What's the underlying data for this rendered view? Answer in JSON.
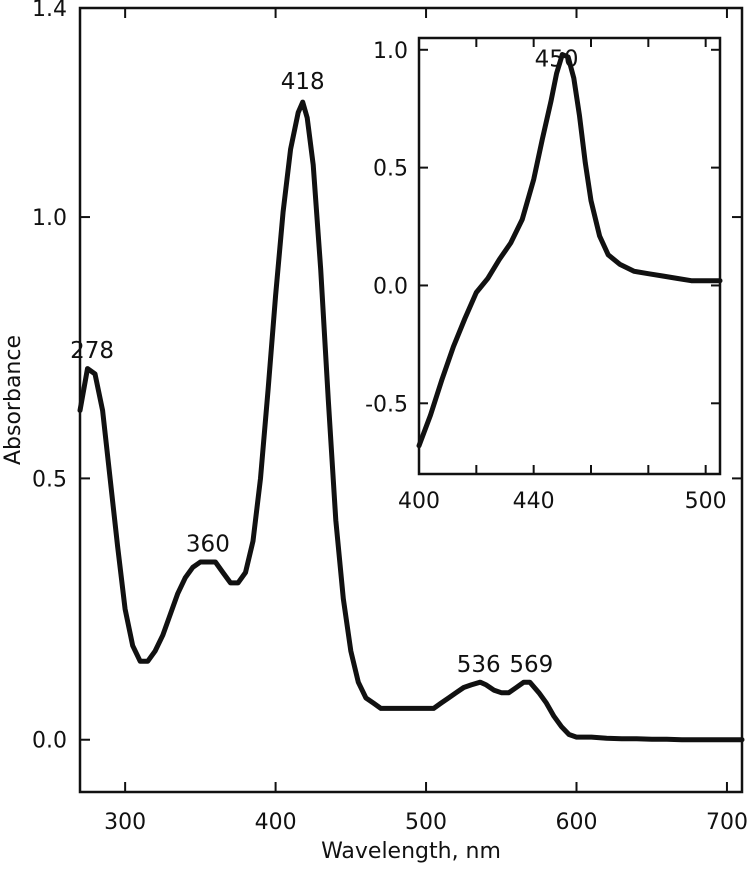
{
  "chart_data": [
    {
      "type": "line",
      "title": "",
      "xlabel": "Wavelength, nm",
      "ylabel": "Absorbance",
      "xlim": [
        270,
        710
      ],
      "ylim": [
        -0.1,
        1.4
      ],
      "xticks": [
        300,
        400,
        500,
        600,
        700
      ],
      "yticks": [
        0.0,
        0.5,
        1.0,
        1.4
      ],
      "ytick_labels": [
        "0.0",
        "0.5",
        "1.0",
        "1.4"
      ],
      "grid": false,
      "series": [
        {
          "color": "#111111",
          "x": [
            270,
            275,
            280,
            285,
            290,
            295,
            300,
            305,
            310,
            315,
            320,
            325,
            330,
            335,
            340,
            345,
            350,
            355,
            360,
            365,
            370,
            375,
            380,
            385,
            390,
            395,
            400,
            405,
            410,
            415,
            418,
            421,
            425,
            430,
            435,
            440,
            445,
            450,
            455,
            460,
            465,
            470,
            475,
            480,
            485,
            490,
            495,
            500,
            505,
            510,
            515,
            520,
            525,
            530,
            536,
            540,
            545,
            550,
            555,
            560,
            565,
            569,
            575,
            580,
            585,
            590,
            595,
            600,
            610,
            620,
            630,
            640,
            650,
            660,
            670,
            680,
            690,
            700,
            710
          ],
          "y": [
            0.63,
            0.71,
            0.7,
            0.63,
            0.5,
            0.37,
            0.25,
            0.18,
            0.15,
            0.15,
            0.17,
            0.2,
            0.24,
            0.28,
            0.31,
            0.33,
            0.34,
            0.34,
            0.34,
            0.32,
            0.3,
            0.3,
            0.32,
            0.38,
            0.5,
            0.67,
            0.85,
            1.01,
            1.13,
            1.2,
            1.22,
            1.19,
            1.1,
            0.9,
            0.65,
            0.42,
            0.27,
            0.17,
            0.11,
            0.08,
            0.07,
            0.06,
            0.06,
            0.06,
            0.06,
            0.06,
            0.06,
            0.06,
            0.06,
            0.07,
            0.08,
            0.09,
            0.1,
            0.105,
            0.11,
            0.105,
            0.095,
            0.09,
            0.09,
            0.1,
            0.11,
            0.11,
            0.09,
            0.07,
            0.045,
            0.025,
            0.01,
            0.005,
            0.005,
            0.003,
            0.002,
            0.002,
            0.001,
            0.001,
            0.0,
            0.0,
            0.0,
            0.0,
            0.0
          ]
        }
      ],
      "annotations": [
        {
          "text": "278",
          "x": 278,
          "y": 0.73
        },
        {
          "text": "360",
          "x": 355,
          "y": 0.36
        },
        {
          "text": "418",
          "x": 418,
          "y": 1.245
        },
        {
          "text": "536",
          "x": 535,
          "y": 0.13
        },
        {
          "text": "569",
          "x": 570,
          "y": 0.13
        }
      ]
    },
    {
      "type": "line",
      "title": "",
      "xlabel": "",
      "ylabel": "",
      "xlim": [
        400,
        505
      ],
      "ylim": [
        -0.8,
        1.05
      ],
      "xticks": [
        400,
        420,
        440,
        460,
        480,
        500
      ],
      "xtick_labels_shown": [
        400,
        440,
        500
      ],
      "yticks": [
        -0.5,
        0.0,
        0.5,
        1.0
      ],
      "ytick_labels": [
        "-0.5",
        "0.0",
        "0.5",
        "1.0"
      ],
      "grid": false,
      "series": [
        {
          "color": "#111111",
          "x": [
            400,
            404,
            408,
            412,
            416,
            420,
            424,
            428,
            432,
            436,
            440,
            443,
            446,
            448,
            450,
            452,
            454,
            456,
            458,
            460,
            463,
            466,
            470,
            475,
            480,
            485,
            490,
            495,
            500,
            505
          ],
          "y": [
            -0.68,
            -0.55,
            -0.4,
            -0.26,
            -0.14,
            -0.03,
            0.03,
            0.11,
            0.18,
            0.28,
            0.45,
            0.62,
            0.78,
            0.9,
            0.98,
            0.97,
            0.88,
            0.72,
            0.52,
            0.36,
            0.21,
            0.13,
            0.09,
            0.06,
            0.05,
            0.04,
            0.03,
            0.02,
            0.02,
            0.02
          ]
        }
      ],
      "annotations": [
        {
          "text": "450",
          "x": 448,
          "y": 0.93
        }
      ]
    }
  ]
}
